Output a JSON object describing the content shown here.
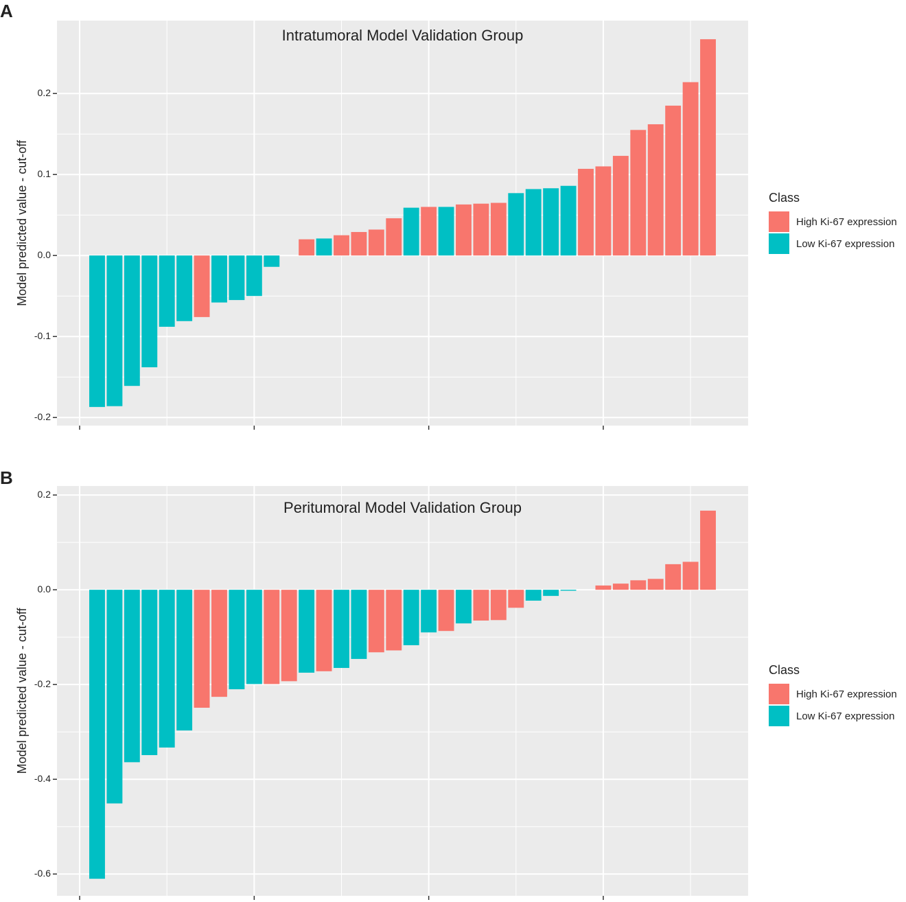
{
  "chart_data": [
    {
      "type": "bar",
      "tag": "A",
      "title": "Intratumoral Model Validation Group",
      "ylabel": "Model predicted value - cut-off",
      "x": [
        1,
        2,
        3,
        4,
        5,
        6,
        7,
        8,
        9,
        10,
        11,
        12,
        13,
        14,
        15,
        16,
        17,
        18,
        19,
        20,
        21,
        22,
        23,
        24,
        25,
        26,
        27,
        28,
        29,
        30,
        31,
        32,
        33,
        34,
        35,
        36
      ],
      "series": [
        {
          "name": "High Ki-67 expression",
          "color": "#F8766D",
          "values": [
            null,
            null,
            null,
            null,
            null,
            null,
            -0.076,
            null,
            null,
            null,
            null,
            null,
            0.02,
            null,
            0.025,
            0.029,
            0.032,
            0.046,
            null,
            0.06,
            null,
            0.063,
            0.064,
            0.065,
            null,
            null,
            null,
            null,
            0.107,
            0.11,
            0.123,
            0.155,
            0.162,
            0.185,
            0.214,
            0.267
          ]
        },
        {
          "name": "Low Ki-67 expression",
          "color": "#00BFC4",
          "values": [
            -0.187,
            -0.186,
            -0.161,
            -0.138,
            -0.088,
            -0.081,
            null,
            -0.058,
            -0.055,
            -0.05,
            -0.014,
            null,
            null,
            0.021,
            null,
            null,
            null,
            null,
            0.059,
            null,
            0.06,
            null,
            null,
            null,
            0.077,
            0.082,
            0.083,
            0.086,
            null,
            null,
            null,
            null,
            null,
            null,
            null,
            null
          ]
        }
      ],
      "legend_title": "Class",
      "xlim": [
        -1.3,
        38.3
      ],
      "xticks": [
        0,
        10,
        20,
        30
      ],
      "xtick_labels": false,
      "ylim": [
        -0.21,
        0.29
      ],
      "yticks": [
        -0.2,
        -0.1,
        {
          "value": 0,
          "label": "0.0"
        },
        0.1,
        0.2
      ],
      "grid": true
    },
    {
      "type": "bar",
      "tag": "B",
      "title": "Peritumoral Model Validation Group",
      "ylabel": "Model predicted value - cut-off",
      "x": [
        1,
        2,
        3,
        4,
        5,
        6,
        7,
        8,
        9,
        10,
        11,
        12,
        13,
        14,
        15,
        16,
        17,
        18,
        19,
        20,
        21,
        22,
        23,
        24,
        25,
        26,
        27,
        28,
        29,
        30,
        31,
        32,
        33,
        34,
        35,
        36
      ],
      "series": [
        {
          "name": "High Ki-67 expression",
          "color": "#F8766D",
          "values": [
            null,
            null,
            null,
            null,
            null,
            null,
            -0.249,
            -0.226,
            null,
            null,
            -0.199,
            -0.193,
            null,
            -0.172,
            null,
            null,
            -0.132,
            -0.128,
            null,
            null,
            -0.087,
            null,
            -0.065,
            -0.064,
            -0.038,
            null,
            null,
            null,
            null,
            0.009,
            0.013,
            0.02,
            0.023,
            0.054,
            0.059,
            0.167
          ]
        },
        {
          "name": "Low Ki-67 expression",
          "color": "#00BFC4",
          "values": [
            -0.61,
            -0.451,
            -0.364,
            -0.349,
            -0.333,
            -0.297,
            null,
            null,
            -0.21,
            -0.199,
            null,
            null,
            -0.175,
            null,
            -0.165,
            -0.146,
            null,
            null,
            -0.117,
            -0.09,
            null,
            -0.071,
            null,
            null,
            null,
            -0.023,
            -0.013,
            -0.002,
            null,
            null,
            null,
            null,
            null,
            null,
            null,
            null
          ]
        }
      ],
      "legend_title": "Class",
      "xlim": [
        -1.3,
        38.3
      ],
      "xticks": [
        0,
        10,
        20,
        30
      ],
      "xtick_labels": false,
      "ylim": [
        -0.646,
        0.219
      ],
      "yticks": [
        -0.6,
        -0.4,
        -0.2,
        {
          "value": 0,
          "label": "0.0"
        },
        0.2
      ],
      "grid": true
    }
  ]
}
